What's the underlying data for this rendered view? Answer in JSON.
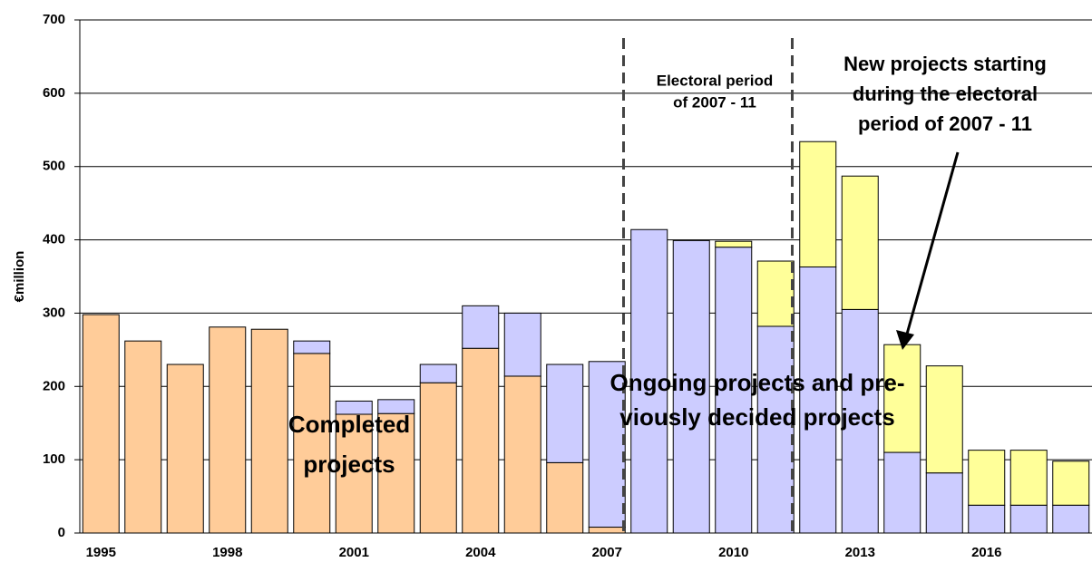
{
  "chart_data": {
    "type": "stacked_bar",
    "y_label": "€million",
    "categories": [
      "1995",
      null,
      null,
      "1998",
      null,
      null,
      "2001",
      null,
      null,
      "2004",
      null,
      null,
      "2007",
      null,
      null,
      "2010",
      null,
      null,
      "2013",
      null,
      null,
      "2016",
      null,
      null
    ],
    "series": [
      {
        "color": "#FFCC99",
        "values": [
          298,
          262,
          230,
          281,
          278,
          245,
          162,
          163,
          205,
          252,
          214,
          96,
          8,
          null,
          null,
          null,
          null,
          null,
          null,
          null,
          null,
          null,
          null,
          null
        ]
      },
      {
        "color": "#CCCCFF",
        "values": [
          null,
          null,
          null,
          null,
          null,
          17,
          18,
          19,
          25,
          58,
          86,
          134,
          226,
          414,
          399,
          390,
          282,
          363,
          305,
          110,
          82,
          38,
          38,
          38
        ]
      },
      {
        "color": "#FFFF99",
        "values": [
          null,
          null,
          null,
          null,
          null,
          null,
          null,
          null,
          null,
          null,
          null,
          null,
          null,
          null,
          null,
          8,
          89,
          171,
          182,
          147,
          146,
          75,
          75,
          60
        ]
      }
    ],
    "ylim": [
      0,
      700
    ],
    "yticks": [
      0,
      100,
      200,
      300,
      400,
      500,
      600,
      700
    ],
    "grid": true,
    "annotations": [
      {
        "lines": [
          "Completed",
          "projects"
        ]
      },
      {
        "lines": [
          "Ongoing projects and pre-",
          "viously decided projects"
        ]
      },
      {
        "lines": [
          "Electoral period",
          "of 2007 - 11"
        ]
      },
      {
        "lines": [
          "New projects starting",
          "during the electoral",
          "period of 2007 - 11"
        ]
      }
    ]
  }
}
